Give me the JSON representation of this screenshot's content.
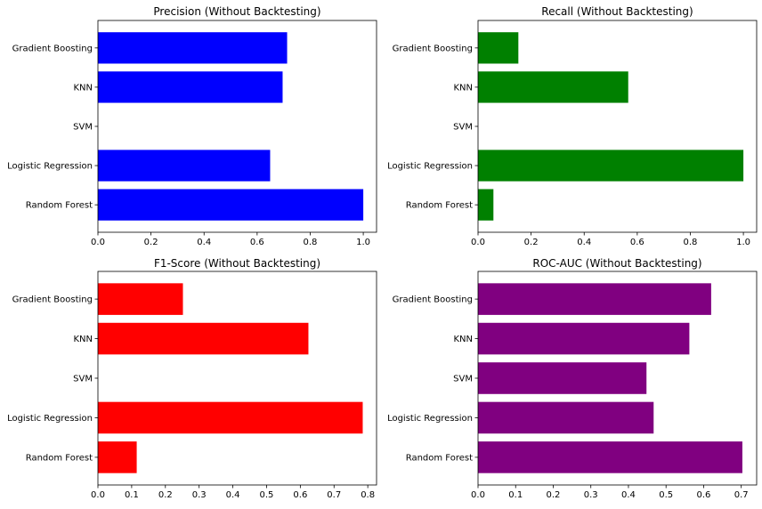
{
  "chart_data": [
    {
      "type": "bar",
      "orientation": "horizontal",
      "title": "Precision (Without Backtesting)",
      "categories": [
        "Random Forest",
        "Logistic Regression",
        "SVM",
        "KNN",
        "Gradient Boosting"
      ],
      "values": [
        1.0,
        0.649,
        0.0,
        0.696,
        0.713
      ],
      "xlim": [
        0,
        1.05
      ],
      "xticks": [
        "0.0",
        "0.2",
        "0.4",
        "0.6",
        "0.8",
        "1.0"
      ],
      "color": "#0000ff",
      "grid": false
    },
    {
      "type": "bar",
      "orientation": "horizontal",
      "title": "Recall (Without Backtesting)",
      "categories": [
        "Random Forest",
        "Logistic Regression",
        "SVM",
        "KNN",
        "Gradient Boosting"
      ],
      "values": [
        0.058,
        1.0,
        0.0,
        0.566,
        0.152
      ],
      "xlim": [
        0,
        1.05
      ],
      "xticks": [
        "0.0",
        "0.2",
        "0.4",
        "0.6",
        "0.8",
        "1.0"
      ],
      "color": "#008000",
      "grid": false
    },
    {
      "type": "bar",
      "orientation": "horizontal",
      "title": "F1-Score (Without Backtesting)",
      "categories": [
        "Random Forest",
        "Logistic Regression",
        "SVM",
        "KNN",
        "Gradient Boosting"
      ],
      "values": [
        0.115,
        0.785,
        0.0,
        0.624,
        0.252
      ],
      "xlim": [
        0,
        0.826
      ],
      "xticks": [
        "0.0",
        "0.1",
        "0.2",
        "0.3",
        "0.4",
        "0.5",
        "0.6",
        "0.7",
        "0.8"
      ],
      "color": "#ff0000",
      "grid": false
    },
    {
      "type": "bar",
      "orientation": "horizontal",
      "title": "ROC-AUC (Without Backtesting)",
      "categories": [
        "Random Forest",
        "Logistic Regression",
        "SVM",
        "KNN",
        "Gradient Boosting"
      ],
      "values": [
        0.703,
        0.467,
        0.448,
        0.562,
        0.62
      ],
      "xlim": [
        0,
        0.741
      ],
      "xticks": [
        "0.0",
        "0.1",
        "0.2",
        "0.3",
        "0.4",
        "0.5",
        "0.6",
        "0.7"
      ],
      "color": "#800080",
      "grid": false
    }
  ]
}
